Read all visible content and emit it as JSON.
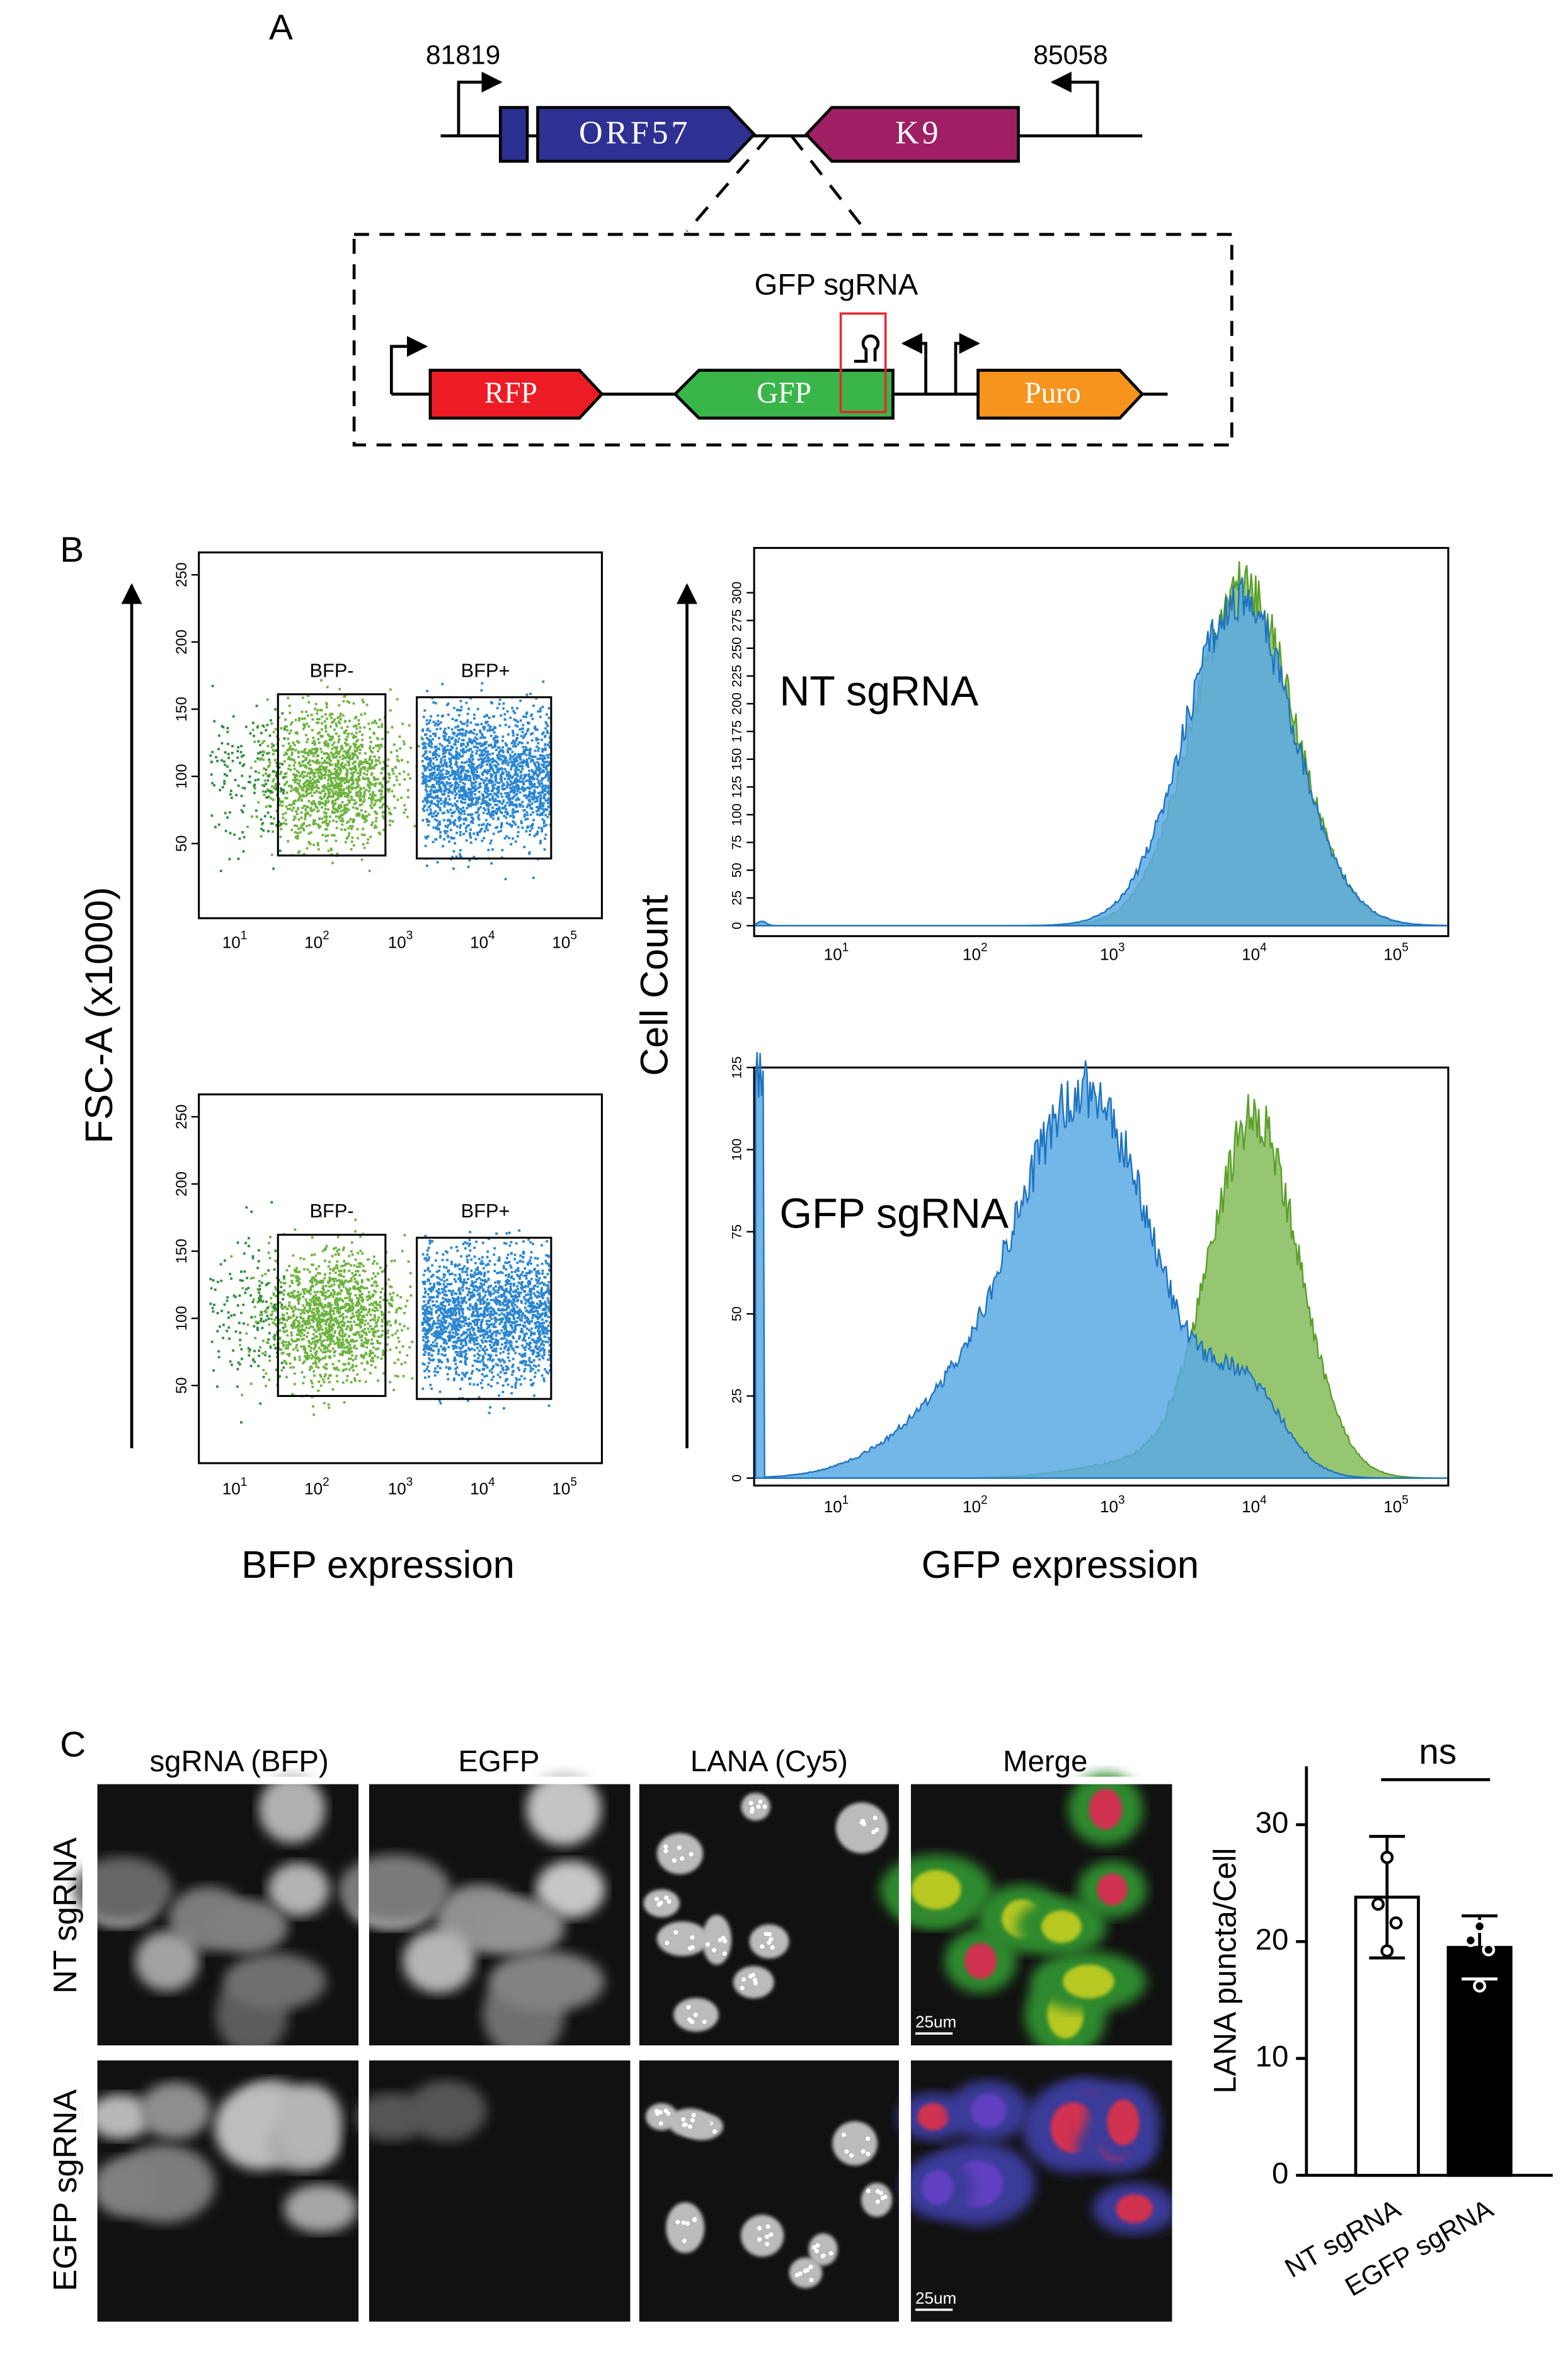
{
  "panel_a": {
    "label": "A",
    "start": "81819",
    "end": "85058",
    "genes": [
      "ORF57",
      "K9"
    ],
    "insert_label": "GFP sgRNA",
    "cassette": [
      "RFP",
      "GFP",
      "Puro"
    ]
  },
  "panel_b": {
    "label": "B",
    "gates": [
      "BFP-",
      "BFP+"
    ],
    "y_label": "FSC-A (x1000)",
    "x_label_left": "BFP expression",
    "hist_y_label": "Cell Count",
    "x_label_right": "GFP expression",
    "samples": [
      "NT sgRNA",
      "GFP sgRNA"
    ],
    "decade_base": "10",
    "decade_exps": [
      "1",
      "2",
      "3",
      "4",
      "5"
    ],
    "flow_yticks": [
      50,
      100,
      150,
      200,
      250
    ],
    "hist_top_yticks": [
      0,
      25,
      50,
      75,
      100,
      125,
      150,
      175,
      200,
      225,
      250,
      275,
      300
    ],
    "hist_bottom_yticks": [
      0,
      25,
      50,
      75,
      100,
      125
    ]
  },
  "panel_c": {
    "label": "C",
    "columns": [
      "sgRNA (BFP)",
      "EGFP",
      "LANA (Cy5)",
      "Merge"
    ],
    "rows": [
      "NT sgRNA",
      "EGFP sgRNA"
    ],
    "scale_bar": "25um"
  },
  "chart_data": {
    "type": "bar",
    "y_label": "LANA puncta/Cell",
    "categories": [
      "NT sgRNA",
      "EGFP sgRNA"
    ],
    "values": [
      23.8,
      19.5
    ],
    "errors": [
      5.2,
      2.7
    ],
    "points": [
      [
        27.2,
        23.2,
        21.6,
        19.2
      ],
      [
        21.3,
        20.1,
        19.3,
        16.2
      ]
    ],
    "colors": [
      "#ffffff",
      "#000000"
    ],
    "ylim": [
      0,
      35
    ],
    "yticks": [
      0,
      10,
      20,
      30
    ],
    "annotation": "ns"
  }
}
